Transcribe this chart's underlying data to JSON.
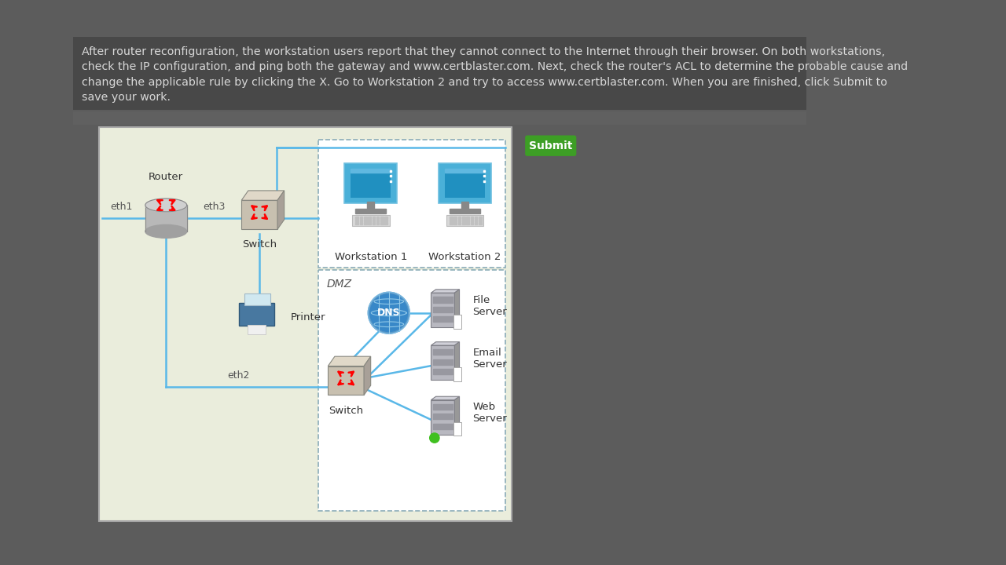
{
  "bg_color": "#5c5c5c",
  "header_bg": "#4a4a4a",
  "header_text_color": "#d8d8d8",
  "header_text_line1": "After router reconfiguration, the workstation users report that they cannot connect to the Internet through their browser. On both workstations,",
  "header_text_line2": "check the IP configuration, and ping both the gateway and www.certblaster.com. Next, check the router's ACL to determine the probable cause and",
  "header_text_line3": "change the applicable rule by clicking the X. Go to Workstation 2 and try to access www.certblaster.com. When you are finished, click Submit to",
  "header_text_line4": "save your work.",
  "diagram_bg": "#eaeddc",
  "diagram_border": "#aaaaaa",
  "submit_bg": "#3d9e25",
  "submit_text": "Submit",
  "submit_text_color": "#ffffff",
  "line_color": "#5ab8e8",
  "dashed_border_color": "#8aacb8",
  "label_color": "#333333",
  "router_body": "#b8b8b8",
  "router_top": "#d0d0d0",
  "router_bottom": "#a0a0a0",
  "switch_front": "#c8c0b0",
  "switch_top": "#e0d8c8",
  "switch_side": "#a8a098",
  "server_front": "#b8b8c0",
  "server_top": "#d0d0d8",
  "server_side": "#989898",
  "ws_frame": "#4ab0d8",
  "ws_screen": "#2090c0",
  "ws_base": "#888888",
  "printer_body": "#4878a0",
  "printer_paper": "#f0f0f0",
  "dns_globe": "#3888c8",
  "dns_text": "#ffffff",
  "green_dot": "#40c020"
}
